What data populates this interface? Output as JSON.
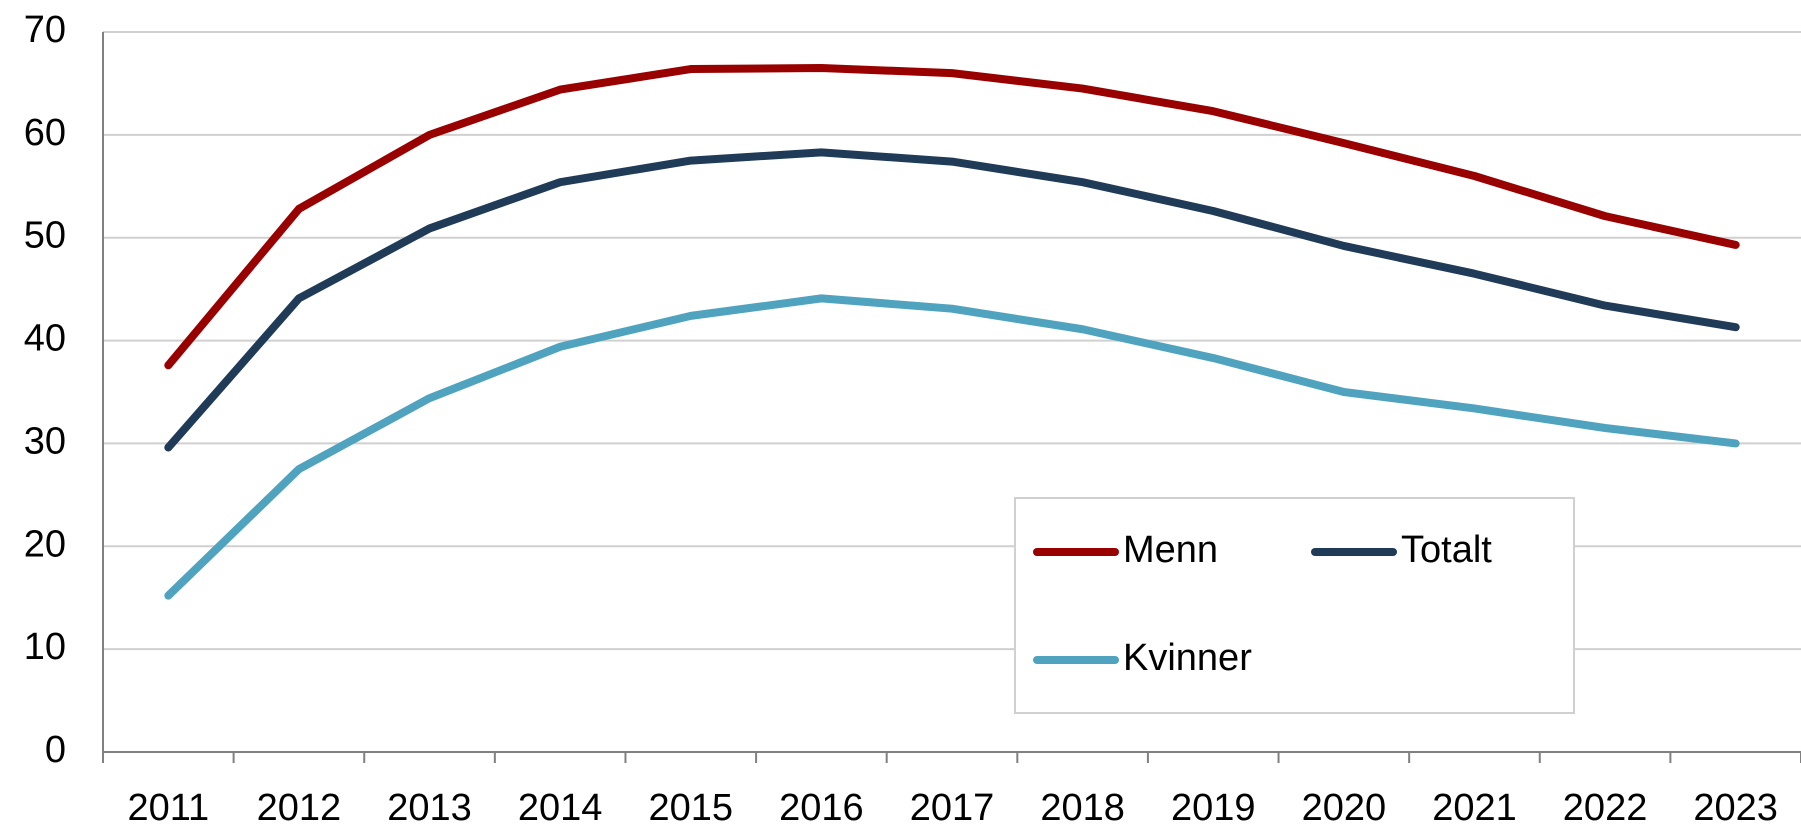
{
  "chart_data": {
    "type": "line",
    "categories": [
      "2011",
      "2012",
      "2013",
      "2014",
      "2015",
      "2016",
      "2017",
      "2018",
      "2019",
      "2020",
      "2021",
      "2022",
      "2023"
    ],
    "series": [
      {
        "name": "Menn",
        "color": "#990000",
        "values": [
          37.6,
          52.8,
          60.0,
          64.4,
          66.4,
          66.5,
          66.0,
          64.5,
          62.3,
          59.2,
          56.0,
          52.1,
          49.3
        ]
      },
      {
        "name": "Totalt",
        "color": "#1f3b57",
        "values": [
          29.6,
          44.1,
          50.9,
          55.4,
          57.5,
          58.3,
          57.4,
          55.4,
          52.6,
          49.2,
          46.5,
          43.4,
          41.3
        ]
      },
      {
        "name": "Kvinner",
        "color": "#4fa3bf",
        "values": [
          15.2,
          27.5,
          34.4,
          39.4,
          42.4,
          44.1,
          43.1,
          41.1,
          38.3,
          35.0,
          33.4,
          31.5,
          30.0
        ]
      }
    ],
    "ylim": [
      0,
      70
    ],
    "yticks": [
      0,
      10,
      20,
      30,
      40,
      50,
      60,
      70
    ],
    "grid": true,
    "legend": "lower right"
  }
}
